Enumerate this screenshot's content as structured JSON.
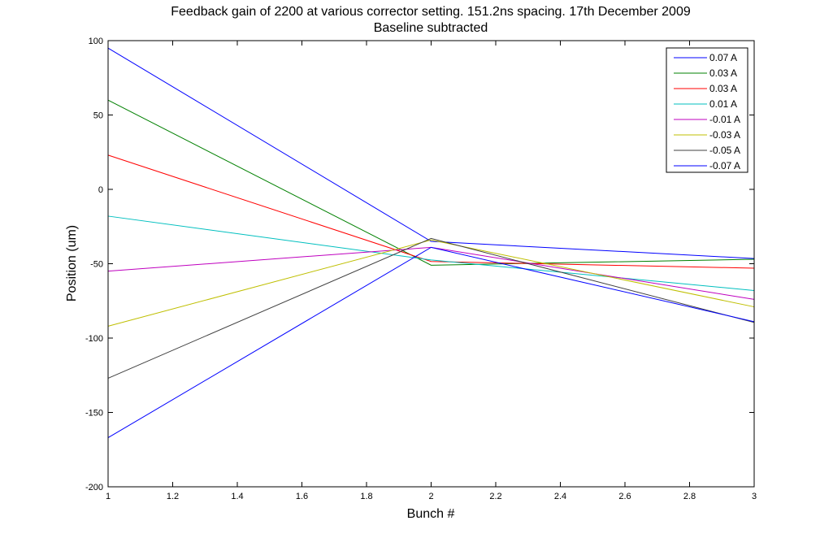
{
  "chart_data": {
    "type": "line",
    "title": "Feedback gain of 2200 at various corrector setting. 151.2ns spacing. 17th December 2009",
    "subtitle": "Baseline subtracted",
    "xlabel": "Bunch #",
    "ylabel": "Position (um)",
    "xlim": [
      1,
      3
    ],
    "ylim": [
      -200,
      100
    ],
    "xticks": [
      1,
      1.2,
      1.4,
      1.6,
      1.8,
      2,
      2.2,
      2.4,
      2.6,
      2.8,
      3
    ],
    "xtick_labels": [
      "1",
      "1.2",
      "1.4",
      "1.6",
      "1.8",
      "2",
      "2.2",
      "2.4",
      "2.6",
      "2.8",
      "3"
    ],
    "yticks": [
      100,
      50,
      0,
      -50,
      -100,
      -150,
      -200
    ],
    "ytick_labels": [
      "100",
      "50",
      "0",
      "-50",
      "-100",
      "-150",
      "-200"
    ],
    "grid": false,
    "legend_position": "top-right",
    "x": [
      1,
      2,
      3
    ],
    "series": [
      {
        "name": "0.07 A",
        "color": "#0000ff",
        "values": [
          95,
          -35,
          -46.5
        ]
      },
      {
        "name": "0.03 A",
        "color": "#008000",
        "values": [
          60,
          -51,
          -47
        ]
      },
      {
        "name": "0.03 A",
        "color": "#ff0000",
        "values": [
          23,
          -48.5,
          -53
        ]
      },
      {
        "name": "0.01 A",
        "color": "#00bfbf",
        "values": [
          -18,
          -47.5,
          -68
        ]
      },
      {
        "name": "-0.01 A",
        "color": "#bf00bf",
        "values": [
          -55,
          -39,
          -74
        ]
      },
      {
        "name": "-0.03 A",
        "color": "#bfbf00",
        "values": [
          -92,
          -34,
          -79
        ]
      },
      {
        "name": "-0.05 A",
        "color": "#404040",
        "values": [
          -127,
          -33,
          -89.5
        ]
      },
      {
        "name": "-0.07 A",
        "color": "#0000ff",
        "values": [
          -167,
          -39,
          -89
        ]
      }
    ]
  }
}
